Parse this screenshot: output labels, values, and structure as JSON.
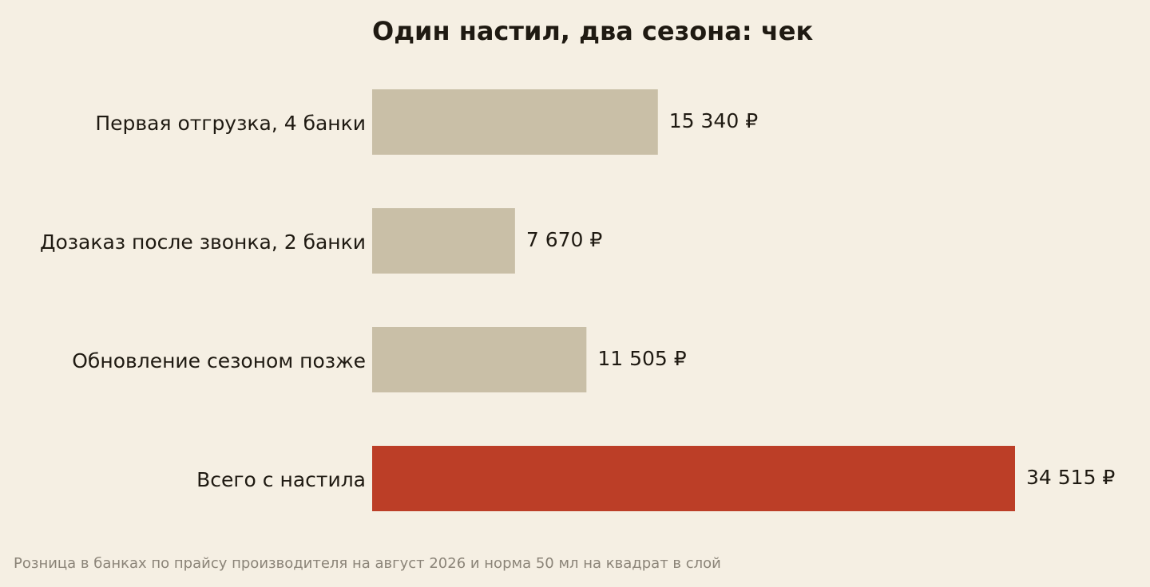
{
  "chart_data": {
    "type": "bar",
    "orientation": "horizontal",
    "title": "Один настил, два сезона: чек",
    "categories": [
      "Первая отгрузка, 4 банки",
      "Дозаказ после звонка, 2 банки",
      "Обновление сезоном позже",
      "Всего с настила"
    ],
    "values": [
      15340,
      7670,
      11505,
      34515
    ],
    "value_labels": [
      "15 340 ₽",
      "7 670 ₽",
      "11 505 ₽",
      "34 515 ₽"
    ],
    "xlim": [
      0,
      34515
    ],
    "grid": false,
    "xlabel": "",
    "ylabel": ""
  },
  "colors": {
    "background": "#f5efe3",
    "bar_default": "#c9bfa7",
    "bar_total": "#bc3e27",
    "text": "#1f1a12",
    "source_text": "#8b8478"
  },
  "source_note": "Розница в банках по прайсу производителя на август 2026 и норма 50 мл на квадрат в слой"
}
